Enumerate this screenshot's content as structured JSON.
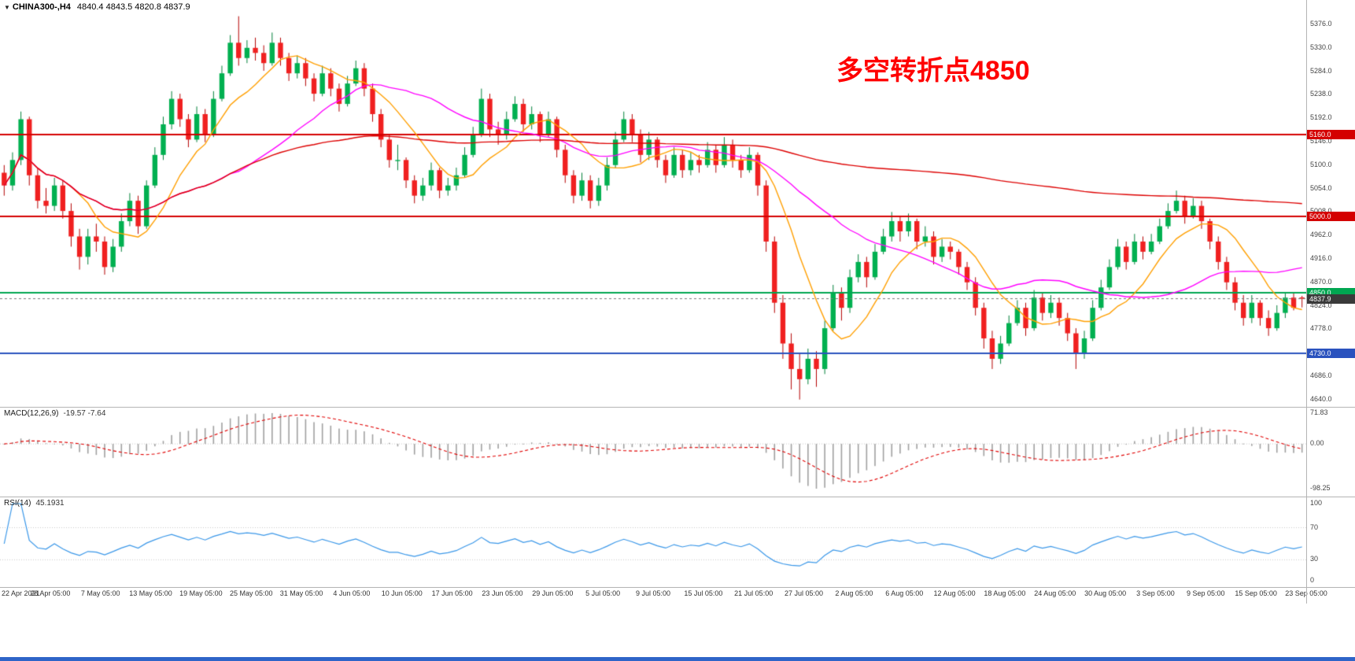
{
  "header": {
    "dropdown_icon": "▼",
    "symbol": "CHINA300-,H4",
    "ohlc": "4840.4 4843.5 4820.8 4837.9"
  },
  "annotation": {
    "text": "多空转折点4850",
    "color": "#ff0000"
  },
  "window": {
    "bottom_bar_color": "#2e64c8"
  },
  "price_axis": {
    "labels": [
      "5376.0",
      "5330.0",
      "5284.0",
      "5238.0",
      "5192.0",
      "5146.0",
      "5100.0",
      "5054.0",
      "5008.0",
      "4962.0",
      "4916.0",
      "4870.0",
      "4824.0",
      "4778.0",
      "4732.0",
      "4686.0",
      "4640.0"
    ]
  },
  "time_axis": {
    "labels": [
      "22 Apr 2021",
      "28 Apr 05:00",
      "7 May 05:00",
      "13 May 05:00",
      "19 May 05:00",
      "25 May 05:00",
      "31 May 05:00",
      "4 Jun 05:00",
      "10 Jun 05:00",
      "17 Jun 05:00",
      "23 Jun 05:00",
      "29 Jun 05:00",
      "5 Jul 05:00",
      "9 Jul 05:00",
      "15 Jul 05:00",
      "21 Jul 05:00",
      "27 Jul 05:00",
      "2 Aug 05:00",
      "6 Aug 05:00",
      "12 Aug 05:00",
      "18 Aug 05:00",
      "24 Aug 05:00",
      "30 Aug 05:00",
      "3 Sep 05:00",
      "9 Sep 05:00",
      "15 Sep 05:00",
      "23 Sep 05:00"
    ]
  },
  "chart_data": {
    "type": "candlestick",
    "title": "CHINA300-,H4",
    "timeframe": "H4",
    "ylim": [
      4626,
      5424
    ],
    "up_color": "#00b050",
    "up_stroke": "#00803a",
    "down_color": "#f02020",
    "down_stroke": "#b40000",
    "candles": [
      [
        5085,
        5100,
        5040,
        5060
      ],
      [
        5060,
        5125,
        5050,
        5110
      ],
      [
        5110,
        5205,
        5100,
        5190
      ],
      [
        5190,
        5195,
        5060,
        5080
      ],
      [
        5080,
        5095,
        5015,
        5030
      ],
      [
        5030,
        5055,
        5005,
        5020
      ],
      [
        5020,
        5075,
        5010,
        5060
      ],
      [
        5060,
        5070,
        4995,
        5010
      ],
      [
        5010,
        5025,
        4940,
        4960
      ],
      [
        4960,
        4975,
        4895,
        4920
      ],
      [
        4920,
        4975,
        4905,
        4960
      ],
      [
        4960,
        4985,
        4930,
        4950
      ],
      [
        4950,
        4960,
        4885,
        4900
      ],
      [
        4900,
        4955,
        4890,
        4940
      ],
      [
        4940,
        5005,
        4930,
        4990
      ],
      [
        4990,
        5045,
        4980,
        5030
      ],
      [
        5030,
        5040,
        4965,
        4980
      ],
      [
        4980,
        5070,
        4975,
        5060
      ],
      [
        5060,
        5135,
        5055,
        5120
      ],
      [
        5120,
        5195,
        5110,
        5180
      ],
      [
        5180,
        5245,
        5170,
        5230
      ],
      [
        5230,
        5240,
        5175,
        5190
      ],
      [
        5190,
        5200,
        5135,
        5150
      ],
      [
        5150,
        5215,
        5145,
        5200
      ],
      [
        5200,
        5210,
        5145,
        5160
      ],
      [
        5160,
        5245,
        5155,
        5230
      ],
      [
        5230,
        5295,
        5225,
        5280
      ],
      [
        5280,
        5355,
        5275,
        5340
      ],
      [
        5340,
        5392,
        5295,
        5310
      ],
      [
        5310,
        5345,
        5300,
        5330
      ],
      [
        5330,
        5350,
        5305,
        5320
      ],
      [
        5320,
        5335,
        5285,
        5300
      ],
      [
        5300,
        5360,
        5295,
        5340
      ],
      [
        5340,
        5350,
        5295,
        5310
      ],
      [
        5310,
        5320,
        5265,
        5280
      ],
      [
        5280,
        5315,
        5270,
        5300
      ],
      [
        5300,
        5310,
        5255,
        5270
      ],
      [
        5270,
        5280,
        5225,
        5240
      ],
      [
        5240,
        5295,
        5235,
        5280
      ],
      [
        5280,
        5290,
        5235,
        5250
      ],
      [
        5250,
        5260,
        5205,
        5220
      ],
      [
        5220,
        5275,
        5215,
        5260
      ],
      [
        5260,
        5305,
        5255,
        5290
      ],
      [
        5290,
        5300,
        5235,
        5250
      ],
      [
        5250,
        5260,
        5185,
        5200
      ],
      [
        5200,
        5210,
        5135,
        5150
      ],
      [
        5150,
        5160,
        5095,
        5110
      ],
      [
        5110,
        5140,
        5090,
        5110
      ],
      [
        5110,
        5115,
        5055,
        5070
      ],
      [
        5070,
        5080,
        5025,
        5040
      ],
      [
        5040,
        5075,
        5030,
        5060
      ],
      [
        5060,
        5105,
        5050,
        5090
      ],
      [
        5090,
        5095,
        5035,
        5050
      ],
      [
        5050,
        5075,
        5040,
        5060
      ],
      [
        5060,
        5095,
        5050,
        5080
      ],
      [
        5080,
        5135,
        5075,
        5120
      ],
      [
        5120,
        5175,
        5115,
        5160
      ],
      [
        5160,
        5250,
        5155,
        5230
      ],
      [
        5230,
        5240,
        5155,
        5170
      ],
      [
        5170,
        5185,
        5140,
        5160
      ],
      [
        5160,
        5205,
        5150,
        5190
      ],
      [
        5190,
        5235,
        5185,
        5220
      ],
      [
        5220,
        5230,
        5165,
        5180
      ],
      [
        5180,
        5215,
        5170,
        5200
      ],
      [
        5200,
        5205,
        5145,
        5160
      ],
      [
        5160,
        5205,
        5155,
        5190
      ],
      [
        5190,
        5195,
        5115,
        5130
      ],
      [
        5130,
        5140,
        5065,
        5080
      ],
      [
        5080,
        5090,
        5025,
        5040
      ],
      [
        5040,
        5085,
        5030,
        5070
      ],
      [
        5070,
        5080,
        5015,
        5030
      ],
      [
        5030,
        5075,
        5020,
        5060
      ],
      [
        5060,
        5115,
        5050,
        5100
      ],
      [
        5100,
        5165,
        5095,
        5150
      ],
      [
        5150,
        5205,
        5145,
        5190
      ],
      [
        5190,
        5200,
        5145,
        5160
      ],
      [
        5160,
        5170,
        5105,
        5120
      ],
      [
        5120,
        5165,
        5110,
        5150
      ],
      [
        5150,
        5155,
        5095,
        5110
      ],
      [
        5110,
        5120,
        5065,
        5080
      ],
      [
        5080,
        5135,
        5075,
        5120
      ],
      [
        5120,
        5130,
        5075,
        5090
      ],
      [
        5090,
        5125,
        5080,
        5110
      ],
      [
        5110,
        5120,
        5085,
        5100
      ],
      [
        5100,
        5145,
        5095,
        5130
      ],
      [
        5130,
        5140,
        5085,
        5100
      ],
      [
        5100,
        5155,
        5095,
        5140
      ],
      [
        5140,
        5150,
        5095,
        5110
      ],
      [
        5110,
        5120,
        5075,
        5090
      ],
      [
        5090,
        5135,
        5085,
        5120
      ],
      [
        5120,
        5125,
        5040,
        5060
      ],
      [
        5060,
        5070,
        4930,
        4950
      ],
      [
        4950,
        4960,
        4810,
        4830
      ],
      [
        4830,
        4845,
        4720,
        4750
      ],
      [
        4750,
        4770,
        4660,
        4700
      ],
      [
        4700,
        4730,
        4640,
        4680
      ],
      [
        4680,
        4740,
        4670,
        4720
      ],
      [
        4720,
        4735,
        4665,
        4700
      ],
      [
        4700,
        4795,
        4690,
        4780
      ],
      [
        4780,
        4865,
        4775,
        4850
      ],
      [
        4850,
        4860,
        4795,
        4820
      ],
      [
        4820,
        4895,
        4810,
        4880
      ],
      [
        4880,
        4925,
        4870,
        4910
      ],
      [
        4910,
        4920,
        4860,
        4880
      ],
      [
        4880,
        4945,
        4875,
        4930
      ],
      [
        4930,
        4975,
        4925,
        4960
      ],
      [
        4960,
        5008,
        4950,
        4990
      ],
      [
        4990,
        5000,
        4950,
        4970
      ],
      [
        4970,
        5005,
        4960,
        4990
      ],
      [
        4990,
        4995,
        4935,
        4950
      ],
      [
        4950,
        4980,
        4940,
        4960
      ],
      [
        4960,
        4970,
        4905,
        4920
      ],
      [
        4920,
        4955,
        4910,
        4940
      ],
      [
        4940,
        4950,
        4915,
        4930
      ],
      [
        4930,
        4935,
        4885,
        4900
      ],
      [
        4900,
        4910,
        4855,
        4870
      ],
      [
        4870,
        4880,
        4805,
        4820
      ],
      [
        4820,
        4830,
        4740,
        4760
      ],
      [
        4760,
        4775,
        4700,
        4720
      ],
      [
        4720,
        4765,
        4710,
        4750
      ],
      [
        4750,
        4805,
        4745,
        4790
      ],
      [
        4790,
        4835,
        4785,
        4820
      ],
      [
        4820,
        4830,
        4765,
        4780
      ],
      [
        4780,
        4855,
        4775,
        4840
      ],
      [
        4840,
        4850,
        4795,
        4810
      ],
      [
        4810,
        4845,
        4800,
        4830
      ],
      [
        4830,
        4840,
        4785,
        4800
      ],
      [
        4800,
        4810,
        4755,
        4770
      ],
      [
        4770,
        4780,
        4700,
        4730
      ],
      [
        4730,
        4775,
        4720,
        4760
      ],
      [
        4760,
        4835,
        4755,
        4820
      ],
      [
        4820,
        4875,
        4815,
        4860
      ],
      [
        4860,
        4915,
        4855,
        4900
      ],
      [
        4900,
        4955,
        4895,
        4940
      ],
      [
        4940,
        4950,
        4895,
        4910
      ],
      [
        4910,
        4965,
        4905,
        4950
      ],
      [
        4950,
        4960,
        4915,
        4930
      ],
      [
        4930,
        4965,
        4925,
        4950
      ],
      [
        4950,
        4995,
        4945,
        4980
      ],
      [
        4980,
        5025,
        4975,
        5010
      ],
      [
        5010,
        5050,
        5005,
        5030
      ],
      [
        5030,
        5040,
        4985,
        5000
      ],
      [
        5000,
        5035,
        4995,
        5020
      ],
      [
        5020,
        5030,
        4975,
        4990
      ],
      [
        4990,
        4995,
        4935,
        4950
      ],
      [
        4950,
        4960,
        4895,
        4910
      ],
      [
        4910,
        4920,
        4855,
        4870
      ],
      [
        4870,
        4880,
        4815,
        4830
      ],
      [
        4830,
        4845,
        4785,
        4800
      ],
      [
        4800,
        4845,
        4790,
        4830
      ],
      [
        4830,
        4835,
        4785,
        4800
      ],
      [
        4800,
        4815,
        4765,
        4780
      ],
      [
        4780,
        4825,
        4775,
        4810
      ],
      [
        4810,
        4850,
        4800,
        4840
      ],
      [
        4840,
        4848,
        4815,
        4820
      ],
      [
        4840.4,
        4843.5,
        4820.8,
        4837.9
      ]
    ],
    "moving_averages": [
      {
        "name": "ma-fast",
        "period": 9,
        "color": "#ff9f00"
      },
      {
        "name": "ma-medium",
        "period": 26,
        "color": "#ff00ff"
      },
      {
        "name": "ma-slow",
        "period": 140,
        "color": "#dd0000"
      }
    ],
    "levels": [
      {
        "price": 5160,
        "label": "5160.0",
        "color": "#d40000"
      },
      {
        "price": 5000,
        "label": "5000.0",
        "color": "#d40000"
      },
      {
        "price": 4850,
        "label": "4850.0",
        "color": "#00a651"
      },
      {
        "price": 4730,
        "label": "4730.0",
        "color": "#2a52be"
      }
    ],
    "current_price": {
      "price": 4837.9,
      "label": "4837.9",
      "bg": "#3a3a3a"
    },
    "subpanels": [
      {
        "type": "macd",
        "title": "MACD(12,26,9)",
        "display_values": "-19.57 -7.64",
        "fast": 12,
        "slow": 26,
        "signal": 9,
        "axis_ticks": [
          "71.83",
          "0.00",
          "-98.25"
        ],
        "histogram_color": "#a0a0a0",
        "signal_color": "#e00000"
      },
      {
        "type": "rsi",
        "title": "RSI(14)",
        "display_value": "45.1931",
        "period": 14,
        "axis_ticks": [
          "100",
          "70",
          "30",
          "0"
        ],
        "level_lines": [
          70,
          30
        ],
        "line_color": "#3a97e8"
      }
    ]
  }
}
